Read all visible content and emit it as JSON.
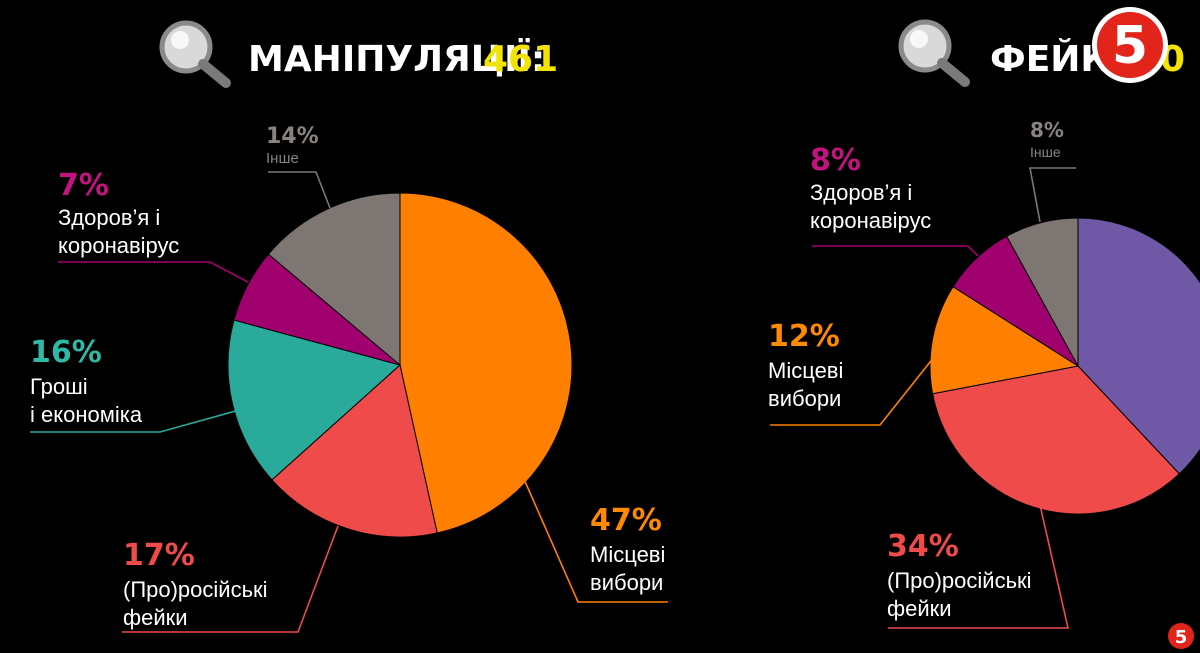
{
  "colors": {
    "background": "#000000",
    "title_text": "#ffffff",
    "title_number": "#f2e300",
    "orange": "#ff8000",
    "red": "#ef4b4b",
    "teal": "#2aaa9a",
    "magenta": "#a1006f",
    "grey": "#7d7672",
    "purple": "#6f58a6",
    "label_text": "#ffffff",
    "pct_magenta": "#c4127f",
    "pct_teal": "#2fb9a6",
    "pct_orange": "#ff8a00",
    "pct_red": "#ef4b4b",
    "pct_grey": "#8a8480"
  },
  "icons": [
    "magnifier-icon",
    "channel-5-logo"
  ],
  "logo": {
    "text": "5",
    "bg": "#e2241a"
  },
  "chart_data": [
    {
      "type": "pie",
      "title": "МАНІПУЛЯЦІЇ:",
      "title_value": "461",
      "slices": [
        {
          "pct_label": "47%",
          "label": [
            "Місцеві",
            "вибори"
          ],
          "value": 47,
          "color": "#ff8000",
          "pct_color": "#ff8a00"
        },
        {
          "pct_label": "17%",
          "label": [
            "(Про)російські",
            "фейки"
          ],
          "value": 17,
          "color": "#ef4b4b",
          "pct_color": "#ef4b4b"
        },
        {
          "pct_label": "16%",
          "label": [
            "Гроші",
            "і економіка"
          ],
          "value": 16,
          "color": "#2aaa9a",
          "pct_color": "#2fb9a6"
        },
        {
          "pct_label": "7%",
          "label": [
            "Здоров’я і",
            "коронавірус"
          ],
          "value": 7,
          "color": "#a1006f",
          "pct_color": "#c4127f"
        },
        {
          "pct_label": "14%",
          "label": [
            "Інше"
          ],
          "value": 14,
          "color": "#7d7672",
          "pct_color": "#8a8480"
        }
      ]
    },
    {
      "type": "pie",
      "title": "ФЕЙК",
      "title_value": "60",
      "slices": [
        {
          "pct_label": "",
          "label": [],
          "value": 38,
          "color": "#6f58a6",
          "pct_color": "#6f58a6"
        },
        {
          "pct_label": "34%",
          "label": [
            "(Про)російські",
            "фейки"
          ],
          "value": 34,
          "color": "#ef4b4b",
          "pct_color": "#ef4b4b"
        },
        {
          "pct_label": "12%",
          "label": [
            "Місцеві",
            "вибори"
          ],
          "value": 12,
          "color": "#ff8000",
          "pct_color": "#ff8a00"
        },
        {
          "pct_label": "8%",
          "label": [
            "Здоров’я і",
            "коронавірус"
          ],
          "value": 8,
          "color": "#a1006f",
          "pct_color": "#c4127f"
        },
        {
          "pct_label": "8%",
          "label": [
            "Інше"
          ],
          "value": 8,
          "color": "#7d7672",
          "pct_color": "#8a8480"
        }
      ]
    }
  ]
}
